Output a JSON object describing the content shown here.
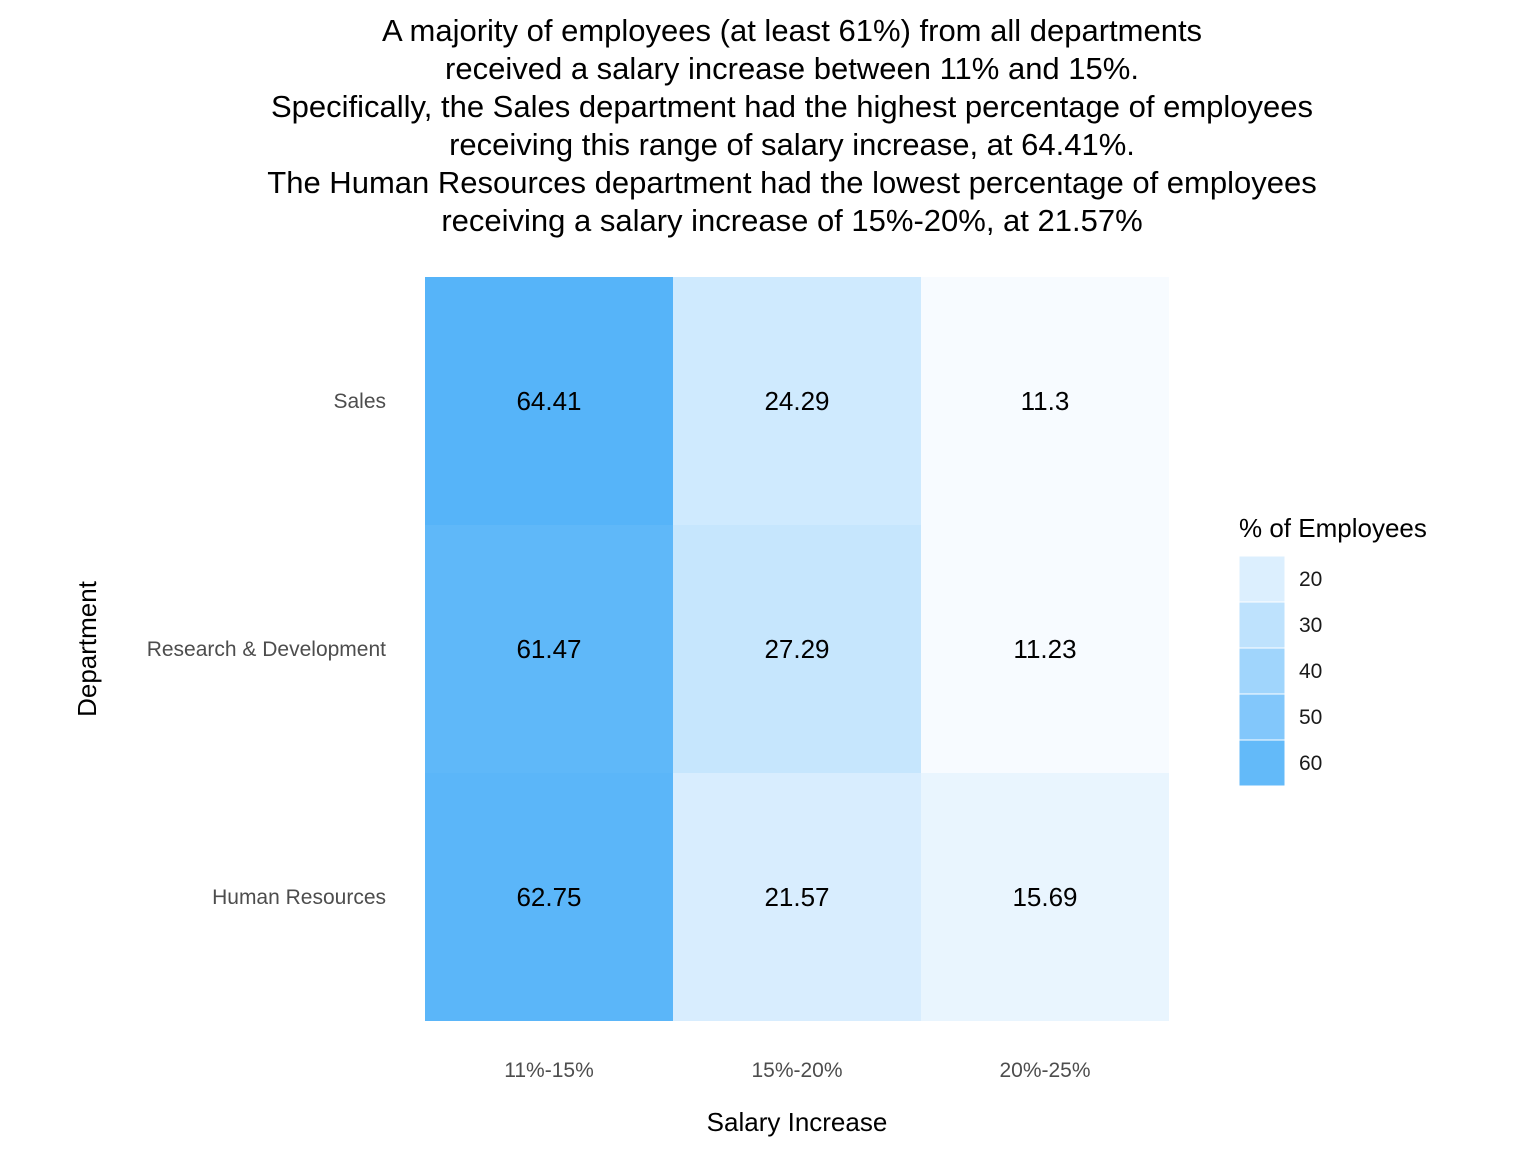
{
  "chart_data": {
    "type": "heatmap",
    "title_lines": [
      "A majority of employees (at least 61%) from all departments",
      "received a salary increase between 11% and 15%.",
      "Specifically, the Sales department had the highest percentage of employees",
      "receiving this range of salary increase, at 64.41%.",
      "The Human Resources department had the lowest percentage of employees",
      "receiving a salary increase of 15%-20%, at 21.57%"
    ],
    "xlabel": "Salary Increase",
    "ylabel": "Department",
    "x_categories": [
      "11%-15%",
      "15%-20%",
      "20%-25%"
    ],
    "y_categories": [
      "Sales",
      "Research & Development",
      "Human Resources"
    ],
    "values": [
      [
        64.41,
        24.29,
        11.3
      ],
      [
        61.47,
        27.29,
        11.23
      ],
      [
        62.75,
        21.57,
        15.69
      ]
    ],
    "value_labels": [
      [
        "64.41",
        "24.29",
        "11.3"
      ],
      [
        "61.47",
        "27.29",
        "11.23"
      ],
      [
        "62.75",
        "21.57",
        "15.69"
      ]
    ],
    "color_range": {
      "low": "#f7fbff",
      "high": "#56b4f9",
      "min": 11.23,
      "max": 64.41
    },
    "legend": {
      "title": "% of Employees",
      "placement": "right",
      "tick_values": [
        20,
        30,
        40,
        50,
        60
      ],
      "tick_labels": [
        "20",
        "30",
        "40",
        "50",
        "60"
      ]
    },
    "grid": false
  }
}
